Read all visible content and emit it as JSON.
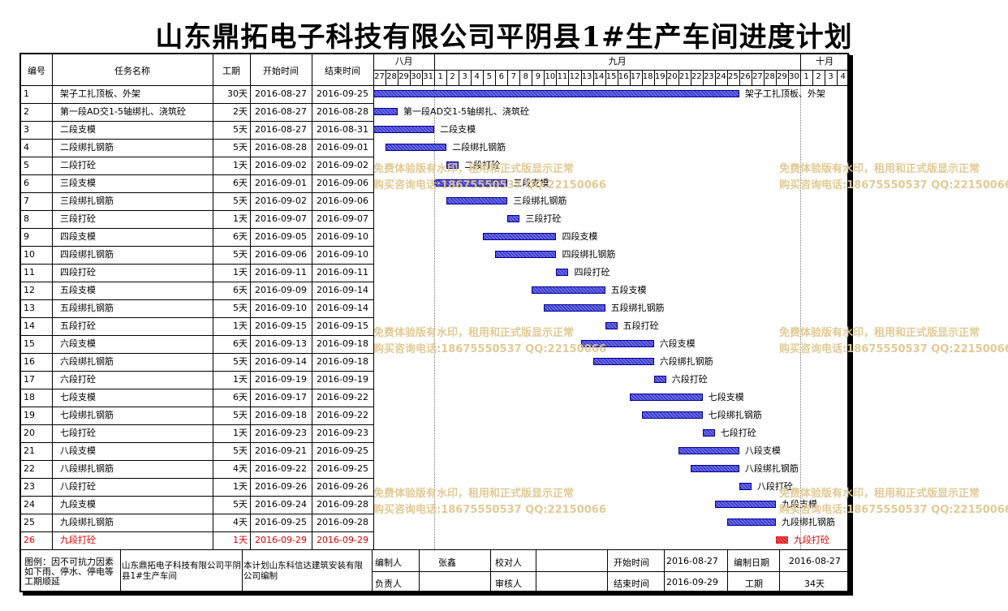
{
  "title": "山东鼎拓电子科技有限公司平阴县1#生产车间进度计划",
  "table_headers": {
    "id": "编号",
    "name": "任务名称",
    "duration": "工期",
    "start": "开始时间",
    "end": "结束时间"
  },
  "months": [
    {
      "label": "八月"
    },
    {
      "label": "九月"
    },
    {
      "label": "十月"
    }
  ],
  "day_labels": [
    "27",
    "28",
    "29",
    "30",
    "31",
    "1",
    "2",
    "3",
    "4",
    "5",
    "6",
    "7",
    "8",
    "9",
    "10",
    "11",
    "12",
    "13",
    "14",
    "15",
    "16",
    "17",
    "18",
    "19",
    "20",
    "21",
    "22",
    "23",
    "24",
    "25",
    "26",
    "27",
    "28",
    "29",
    "30",
    "1",
    "2",
    "3",
    "4"
  ],
  "chart_data": {
    "type": "gantt",
    "x_range": [
      "2016-08-27",
      "2016-10-04"
    ],
    "tasks": [
      {
        "id": "1",
        "name": "架子工扎顶板、外架",
        "duration": "30天",
        "start": "2016-08-27",
        "end": "2016-09-25",
        "bar_label": "架子工扎顶板、外架"
      },
      {
        "id": "2",
        "name": "第一段AD交1-5轴绑扎、浇筑砼",
        "duration": "2天",
        "start": "2016-08-27",
        "end": "2016-08-28",
        "bar_label": "第一段AD交1-5轴绑扎、浇筑砼"
      },
      {
        "id": "3",
        "name": "二段支模",
        "duration": "5天",
        "start": "2016-08-27",
        "end": "2016-08-31",
        "bar_label": "二段支模"
      },
      {
        "id": "4",
        "name": "二段绑扎钢筋",
        "duration": "5天",
        "start": "2016-08-28",
        "end": "2016-09-01",
        "bar_label": "二段绑扎钢筋"
      },
      {
        "id": "5",
        "name": "二段打砼",
        "duration": "1天",
        "start": "2016-09-02",
        "end": "2016-09-02",
        "bar_label": "二段打砼"
      },
      {
        "id": "6",
        "name": "三段支模",
        "duration": "6天",
        "start": "2016-09-01",
        "end": "2016-09-06",
        "bar_label": "三段支模"
      },
      {
        "id": "7",
        "name": "三段绑扎钢筋",
        "duration": "5天",
        "start": "2016-09-02",
        "end": "2016-09-06",
        "bar_label": "三段绑扎钢筋"
      },
      {
        "id": "8",
        "name": "三段打砼",
        "duration": "1天",
        "start": "2016-09-07",
        "end": "2016-09-07",
        "bar_label": "三段打砼"
      },
      {
        "id": "9",
        "name": "四段支模",
        "duration": "6天",
        "start": "2016-09-05",
        "end": "2016-09-10",
        "bar_label": "四段支模"
      },
      {
        "id": "10",
        "name": "四段绑扎钢筋",
        "duration": "5天",
        "start": "2016-09-06",
        "end": "2016-09-10",
        "bar_label": "四段绑扎钢筋"
      },
      {
        "id": "11",
        "name": "四段打砼",
        "duration": "1天",
        "start": "2016-09-11",
        "end": "2016-09-11",
        "bar_label": "四段打砼"
      },
      {
        "id": "12",
        "name": "五段支模",
        "duration": "6天",
        "start": "2016-09-09",
        "end": "2016-09-14",
        "bar_label": "五段支模"
      },
      {
        "id": "13",
        "name": "五段绑扎钢筋",
        "duration": "5天",
        "start": "2016-09-10",
        "end": "2016-09-14",
        "bar_label": "五段绑扎钢筋"
      },
      {
        "id": "14",
        "name": "五段打砼",
        "duration": "1天",
        "start": "2016-09-15",
        "end": "2016-09-15",
        "bar_label": "五段打砼"
      },
      {
        "id": "15",
        "name": "六段支模",
        "duration": "6天",
        "start": "2016-09-13",
        "end": "2016-09-18",
        "bar_label": "六段支模"
      },
      {
        "id": "16",
        "name": "六段绑扎钢筋",
        "duration": "5天",
        "start": "2016-09-14",
        "end": "2016-09-18",
        "bar_label": "六段绑扎钢筋"
      },
      {
        "id": "17",
        "name": "六段打砼",
        "duration": "1天",
        "start": "2016-09-19",
        "end": "2016-09-19",
        "bar_label": "六段打砼"
      },
      {
        "id": "18",
        "name": "七段支模",
        "duration": "6天",
        "start": "2016-09-17",
        "end": "2016-09-22",
        "bar_label": "七段支模"
      },
      {
        "id": "19",
        "name": "七段绑扎钢筋",
        "duration": "5天",
        "start": "2016-09-18",
        "end": "2016-09-22",
        "bar_label": "七段绑扎钢筋"
      },
      {
        "id": "20",
        "name": "七段打砼",
        "duration": "1天",
        "start": "2016-09-23",
        "end": "2016-09-23",
        "bar_label": "七段打砼"
      },
      {
        "id": "21",
        "name": "八段支模",
        "duration": "5天",
        "start": "2016-09-21",
        "end": "2016-09-25",
        "bar_label": "八段支模"
      },
      {
        "id": "22",
        "name": "八段绑扎钢筋",
        "duration": "4天",
        "start": "2016-09-22",
        "end": "2016-09-25",
        "bar_label": "八段绑扎钢筋"
      },
      {
        "id": "23",
        "name": "八段打砼",
        "duration": "1天",
        "start": "2016-09-26",
        "end": "2016-09-26",
        "bar_label": "八段打砼"
      },
      {
        "id": "24",
        "name": "九段支模",
        "duration": "5天",
        "start": "2016-09-24",
        "end": "2016-09-28",
        "bar_label": "九段支模"
      },
      {
        "id": "25",
        "name": "九段绑扎钢筋",
        "duration": "4天",
        "start": "2016-09-25",
        "end": "2016-09-28",
        "bar_label": "九段绑扎钢筋"
      },
      {
        "id": "26",
        "name": "九段打砼",
        "duration": "1天",
        "start": "2016-09-29",
        "end": "2016-09-29",
        "bar_label": "九段打砼",
        "highlight": true
      }
    ],
    "colors": {
      "bar": "#3d3dd6",
      "bar_border": "#00008b",
      "highlight": "#e02020",
      "highlight_text": "#e00000"
    }
  },
  "watermark": {
    "line1": "免费体验版有水印，租用和正式版显示正常",
    "line2": "购买咨询电话:18675550537 QQ:22150066",
    "color": "#e0c890"
  },
  "footer": {
    "legend": "图例：因不可抗力因素如下雨、停水、停电等工期顺延",
    "company": "山东鼎拓电子科技有限公司平阴县1#生产车间",
    "note": "本计划山东科信达建筑安装有限公司编制",
    "editor_label": "编制人",
    "editor": "张鑫",
    "checker_label": "校对人",
    "checker": "",
    "leader_label": "负责人",
    "leader": "",
    "reviewer_label": "审核人",
    "reviewer": "",
    "start_label": "开始时间",
    "start": "2016-08-27",
    "end_label": "结束时间",
    "end": "2016-09-29",
    "date_label": "编制日期",
    "date": "2016-08-27",
    "duration_label": "工期",
    "duration": "34天"
  }
}
